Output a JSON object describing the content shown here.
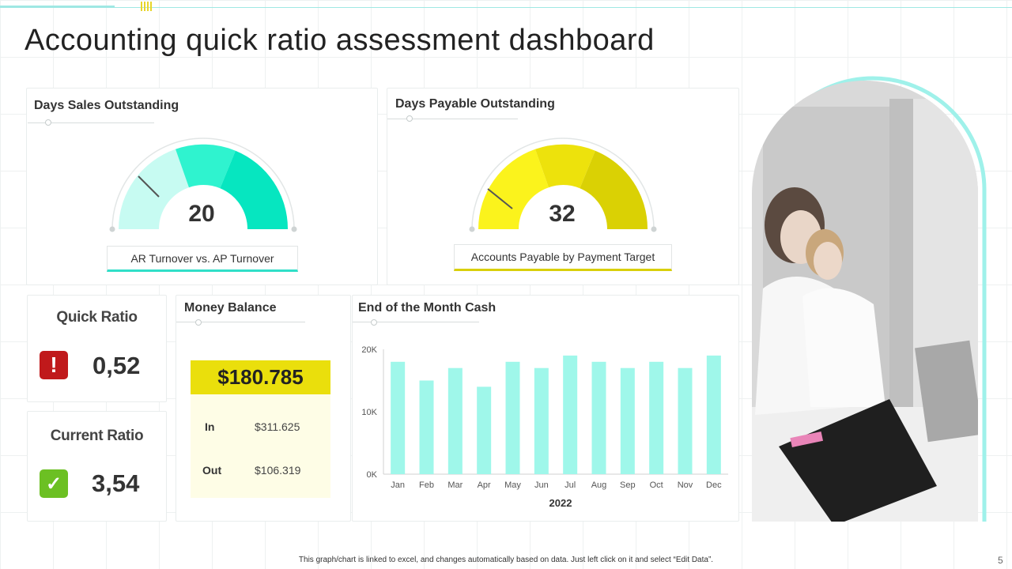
{
  "title": "Accounting quick ratio assessment dashboard",
  "colors": {
    "teal": "#30f0cf",
    "teal_light": "#c7fbf2",
    "teal_mid": "#2ff3cf",
    "teal_dark": "#06e6c0",
    "yellow_light": "#fbf31c",
    "yellow_mid": "#ede20c",
    "yellow_dark": "#dad104",
    "bar": "#9ff7ea",
    "alert_red": "#c0191b",
    "ok_green": "#6cc023",
    "money_header": "#eadf0c",
    "money_body": "#fefde6"
  },
  "dso": {
    "title": "Days Sales Outstanding",
    "value": "20",
    "label": "AR Turnover vs. AP Turnover",
    "needle_fraction": 0.22
  },
  "dpo": {
    "title": "Days Payable Outstanding",
    "value": "32",
    "label": "Accounts Payable by Payment Target",
    "needle_fraction": 0.22
  },
  "quick_ratio": {
    "title": "Quick Ratio",
    "value": "0,52",
    "icon": "exclamation-icon",
    "icon_glyph": "!"
  },
  "current_ratio": {
    "title": "Current Ratio",
    "value": "3,54",
    "icon": "check-icon",
    "icon_glyph": "✓"
  },
  "money_balance": {
    "title": "Money Balance",
    "total": "$180.785",
    "in_label": "In",
    "in_value": "$311.625",
    "out_label": "Out",
    "out_value": "$106.319"
  },
  "cash": {
    "title": "End of the Month Cash"
  },
  "chart_data": {
    "type": "bar",
    "title": "End of the Month Cash",
    "xlabel": "2022",
    "ylabel": "",
    "categories": [
      "Jan",
      "Feb",
      "Mar",
      "Apr",
      "May",
      "Jun",
      "Jul",
      "Aug",
      "Sep",
      "Oct",
      "Nov",
      "Dec"
    ],
    "values": [
      18000,
      15000,
      17000,
      14000,
      18000,
      17000,
      19000,
      18000,
      17000,
      18000,
      17000,
      19000
    ],
    "ylim": [
      0,
      20000
    ],
    "yticks": [
      0,
      10000,
      20000
    ],
    "ytick_labels": [
      "0K",
      "10K",
      "20K"
    ],
    "grid": false,
    "legend": "none"
  },
  "photo": {
    "icon": "office-photo"
  },
  "footer_note": "This graph/chart is linked to excel, and changes automatically based on data. Just left click on it and select “Edit Data”.",
  "page_number": "5"
}
